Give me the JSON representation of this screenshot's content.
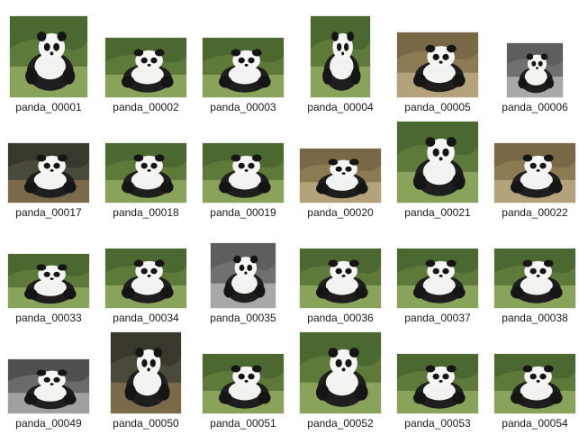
{
  "files": [
    {
      "name": "panda_00001",
      "scene": "green",
      "tone": "color"
    },
    {
      "name": "panda_00002",
      "scene": "green",
      "tone": "color"
    },
    {
      "name": "panda_00003",
      "scene": "green",
      "tone": "color"
    },
    {
      "name": "panda_00004",
      "scene": "green",
      "tone": "color"
    },
    {
      "name": "panda_00005",
      "scene": "dry",
      "tone": "color"
    },
    {
      "name": "panda_00006",
      "scene": "rock",
      "tone": "color"
    },
    {
      "name": "panda_00017",
      "scene": "dark",
      "tone": "color"
    },
    {
      "name": "panda_00018",
      "scene": "green",
      "tone": "color"
    },
    {
      "name": "panda_00019",
      "scene": "green",
      "tone": "color"
    },
    {
      "name": "panda_00020",
      "scene": "dry",
      "tone": "color"
    },
    {
      "name": "panda_00021",
      "scene": "green",
      "tone": "color"
    },
    {
      "name": "panda_00022",
      "scene": "dry",
      "tone": "color"
    },
    {
      "name": "panda_00033",
      "scene": "green",
      "tone": "color"
    },
    {
      "name": "panda_00034",
      "scene": "green",
      "tone": "color"
    },
    {
      "name": "panda_00035",
      "scene": "rock",
      "tone": "color"
    },
    {
      "name": "panda_00036",
      "scene": "green",
      "tone": "color"
    },
    {
      "name": "panda_00037",
      "scene": "green",
      "tone": "color"
    },
    {
      "name": "panda_00038",
      "scene": "green",
      "tone": "color"
    },
    {
      "name": "panda_00049",
      "scene": "rock",
      "tone": "gray"
    },
    {
      "name": "panda_00050",
      "scene": "dark",
      "tone": "color"
    },
    {
      "name": "panda_00051",
      "scene": "green",
      "tone": "color"
    },
    {
      "name": "panda_00052",
      "scene": "green",
      "tone": "color"
    },
    {
      "name": "panda_00053",
      "scene": "green",
      "tone": "color"
    },
    {
      "name": "panda_00054",
      "scene": "green",
      "tone": "color"
    }
  ]
}
